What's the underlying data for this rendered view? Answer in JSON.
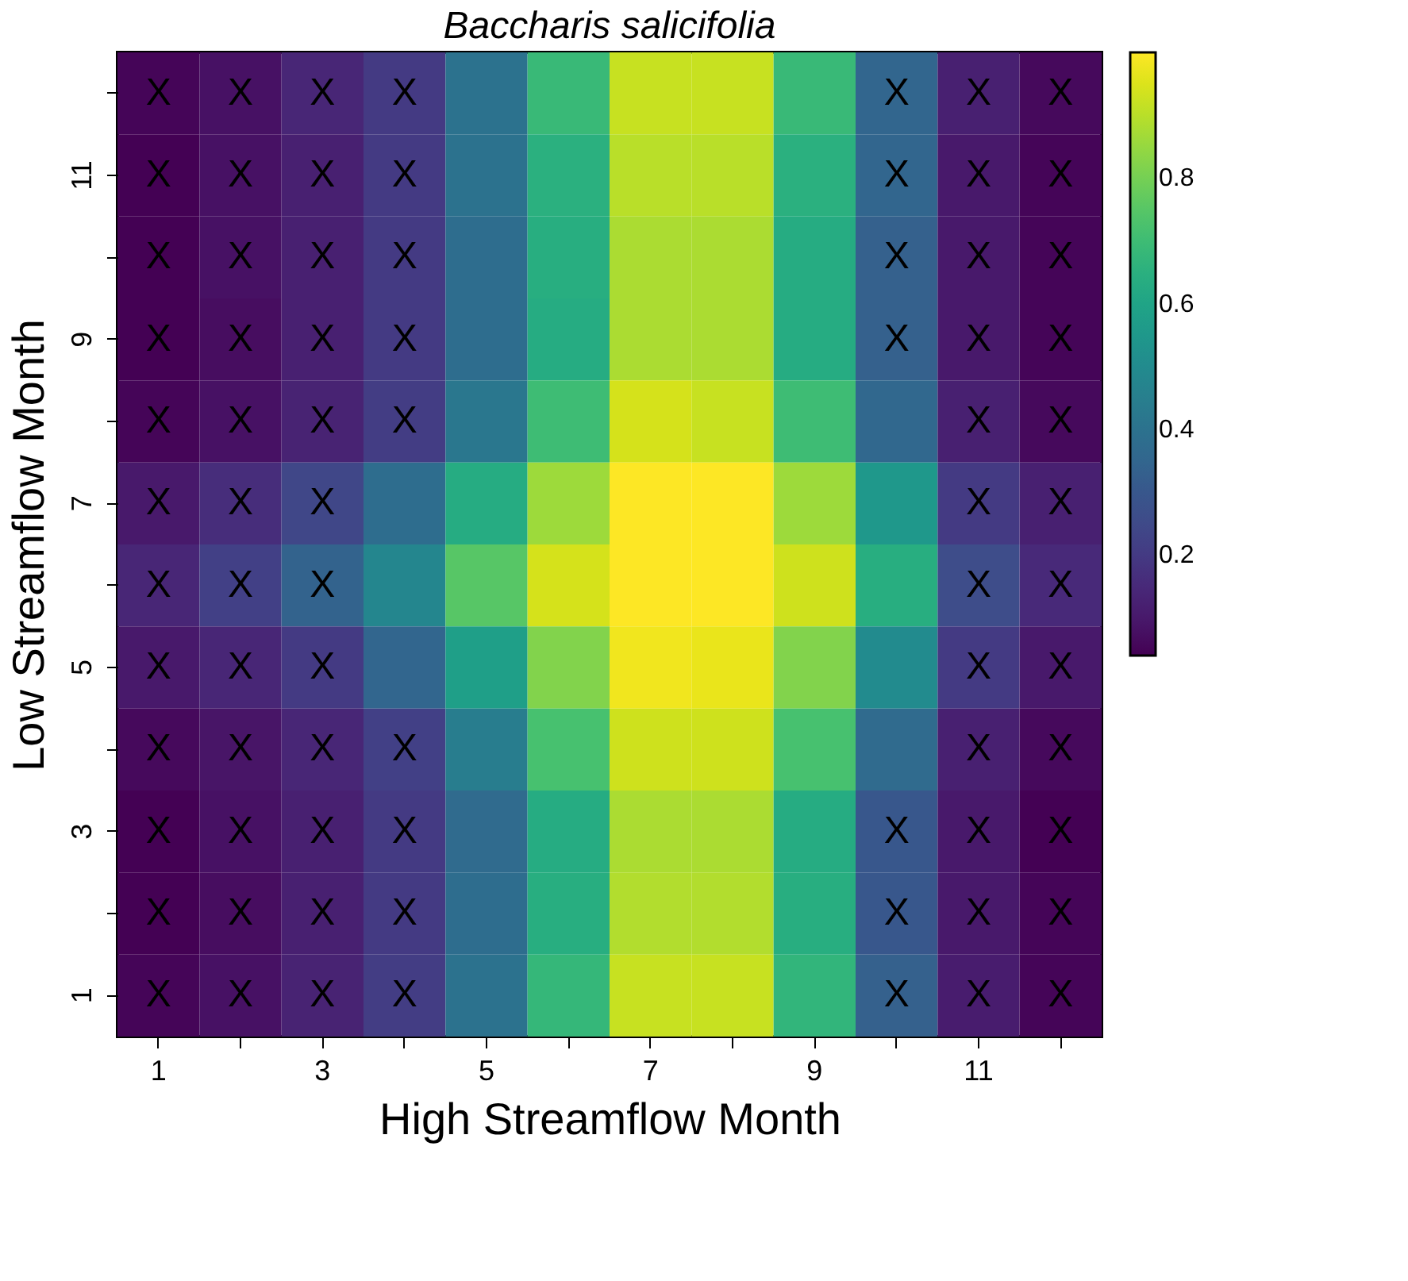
{
  "chart_data": {
    "type": "heatmap",
    "title": "Baccharis salicifolia",
    "xlabel": "High Streamflow Month",
    "ylabel": "Low Streamflow Month",
    "categories": [
      "1",
      null,
      "3",
      null,
      "5",
      null,
      "7",
      null,
      "9",
      null,
      "11",
      null
    ],
    "y_categories": [
      null,
      "11",
      null,
      "9",
      null,
      "7",
      null,
      "5",
      null,
      "3",
      null,
      "1"
    ],
    "clim": [
      0.04,
      1.0
    ],
    "cticks": [
      0.2,
      0.4,
      0.6,
      0.8
    ],
    "cells": [
      [
        0.05,
        0.08,
        0.14,
        0.2,
        0.4,
        0.69,
        0.92,
        0.92,
        0.69,
        0.35,
        0.12,
        0.06
      ],
      [
        0.04,
        0.08,
        0.12,
        0.2,
        0.4,
        0.65,
        0.9,
        0.9,
        0.65,
        0.35,
        0.1,
        0.05
      ],
      [
        0.04,
        0.08,
        0.12,
        0.2,
        0.38,
        0.64,
        0.88,
        0.88,
        0.63,
        0.33,
        0.1,
        0.05
      ],
      [
        0.04,
        0.07,
        0.12,
        0.2,
        0.38,
        0.63,
        0.88,
        0.88,
        0.63,
        0.33,
        0.1,
        0.05
      ],
      [
        0.05,
        0.08,
        0.13,
        0.21,
        0.42,
        0.7,
        0.94,
        0.92,
        0.7,
        0.36,
        0.12,
        0.06
      ],
      [
        0.1,
        0.16,
        0.24,
        0.38,
        0.63,
        0.86,
        1.0,
        1.0,
        0.86,
        0.55,
        0.2,
        0.12
      ],
      [
        0.14,
        0.22,
        0.34,
        0.48,
        0.75,
        0.94,
        1.0,
        1.0,
        0.93,
        0.64,
        0.26,
        0.15
      ],
      [
        0.1,
        0.14,
        0.2,
        0.35,
        0.58,
        0.82,
        0.98,
        0.97,
        0.82,
        0.5,
        0.2,
        0.1
      ],
      [
        0.06,
        0.09,
        0.14,
        0.22,
        0.44,
        0.72,
        0.93,
        0.93,
        0.72,
        0.37,
        0.12,
        0.06
      ],
      [
        0.04,
        0.08,
        0.12,
        0.2,
        0.37,
        0.63,
        0.88,
        0.88,
        0.63,
        0.3,
        0.1,
        0.04
      ],
      [
        0.04,
        0.07,
        0.12,
        0.2,
        0.38,
        0.64,
        0.89,
        0.89,
        0.64,
        0.3,
        0.1,
        0.05
      ],
      [
        0.05,
        0.08,
        0.13,
        0.21,
        0.4,
        0.68,
        0.92,
        0.92,
        0.67,
        0.33,
        0.11,
        0.05
      ]
    ],
    "cell_labels": [
      [
        "X",
        "X",
        "X",
        "X",
        null,
        null,
        null,
        null,
        null,
        "X",
        "X",
        "X"
      ],
      [
        "X",
        "X",
        "X",
        "X",
        null,
        null,
        null,
        null,
        null,
        "X",
        "X",
        "X"
      ],
      [
        "X",
        "X",
        "X",
        "X",
        null,
        null,
        null,
        null,
        null,
        "X",
        "X",
        "X"
      ],
      [
        "X",
        "X",
        "X",
        "X",
        null,
        null,
        null,
        null,
        null,
        "X",
        "X",
        "X"
      ],
      [
        "X",
        "X",
        "X",
        "X",
        null,
        null,
        null,
        null,
        null,
        null,
        "X",
        "X"
      ],
      [
        "X",
        "X",
        "X",
        null,
        null,
        null,
        null,
        null,
        null,
        null,
        "X",
        "X"
      ],
      [
        "X",
        "X",
        "X",
        null,
        null,
        null,
        null,
        null,
        null,
        null,
        "X",
        "X"
      ],
      [
        "X",
        "X",
        "X",
        null,
        null,
        null,
        null,
        null,
        null,
        null,
        "X",
        "X"
      ],
      [
        "X",
        "X",
        "X",
        "X",
        null,
        null,
        null,
        null,
        null,
        null,
        "X",
        "X"
      ],
      [
        "X",
        "X",
        "X",
        "X",
        null,
        null,
        null,
        null,
        null,
        "X",
        "X",
        "X"
      ],
      [
        "X",
        "X",
        "X",
        "X",
        null,
        null,
        null,
        null,
        null,
        "X",
        "X",
        "X"
      ],
      [
        "X",
        "X",
        "X",
        "X",
        null,
        null,
        null,
        null,
        null,
        "X",
        "X",
        "X"
      ]
    ]
  }
}
